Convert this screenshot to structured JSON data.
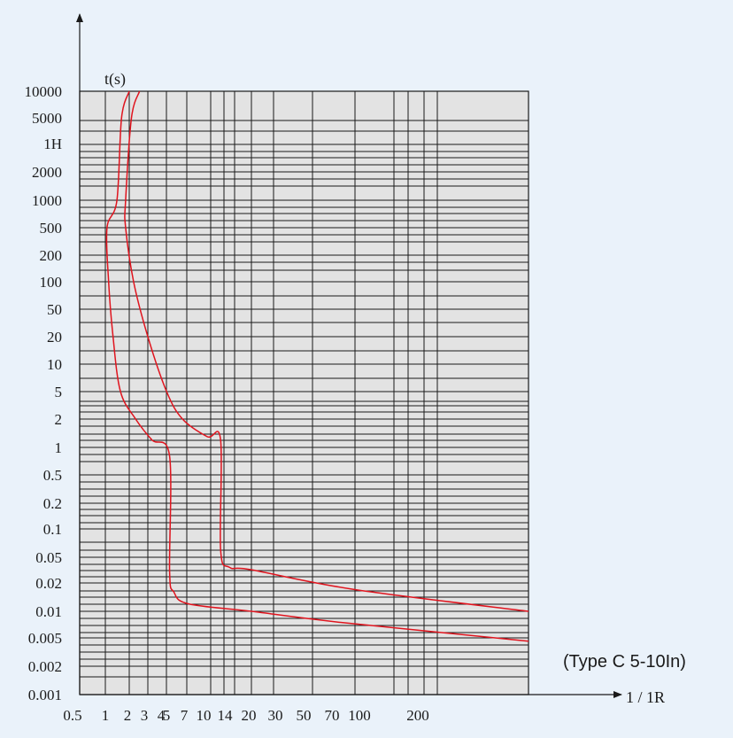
{
  "chart_data": {
    "type": "line",
    "title": "",
    "caption": "(Type C 5-10In)",
    "ylabel": "t(s)",
    "xlabel": "1 / 1R",
    "y_tick_labels": [
      "10000",
      "5000",
      "1H",
      "2000",
      "1000",
      "500",
      "200",
      "100",
      "50",
      "20",
      "10",
      "5",
      "2",
      "1",
      "0.5",
      "0.2",
      "0.1",
      "0.05",
      "0.02",
      "0.01",
      "0.005",
      "0.002",
      "0.001"
    ],
    "x_tick_labels": [
      "0.5",
      "1",
      "2",
      "3",
      "4",
      "5",
      "7",
      "10",
      "14",
      "20",
      "30",
      "50",
      "70",
      "100",
      "200"
    ],
    "grid": true,
    "plot_background": "#e3e3e3",
    "curve_color": "#e0141e",
    "series": [
      {
        "points": [
          [
            2.0,
            10000
          ],
          [
            1.6,
            5000
          ],
          [
            1.4,
            1000
          ],
          [
            1.05,
            500
          ],
          [
            1.1,
            100
          ],
          [
            1.25,
            20
          ],
          [
            1.55,
            5
          ],
          [
            2.3,
            2
          ],
          [
            3.2,
            1.2
          ],
          [
            5.2,
            0.8
          ],
          [
            5.2,
            0.03
          ],
          [
            5.6,
            0.016
          ],
          [
            7.2,
            0.012
          ],
          [
            20,
            0.01
          ],
          [
            80,
            0.0075
          ],
          [
            1000,
            0.0045
          ]
        ]
      },
      {
        "points": [
          [
            2.5,
            10000
          ],
          [
            2.1,
            5000
          ],
          [
            1.8,
            1000
          ],
          [
            1.8,
            500
          ],
          [
            2.2,
            100
          ],
          [
            3.0,
            20
          ],
          [
            4.2,
            5
          ],
          [
            6.5,
            2
          ],
          [
            9.5,
            1.3
          ],
          [
            11.5,
            1.2
          ],
          [
            11.5,
            0.06
          ],
          [
            13,
            0.035
          ],
          [
            20,
            0.032
          ],
          [
            100,
            0.017
          ],
          [
            1000,
            0.01
          ]
        ]
      }
    ]
  }
}
